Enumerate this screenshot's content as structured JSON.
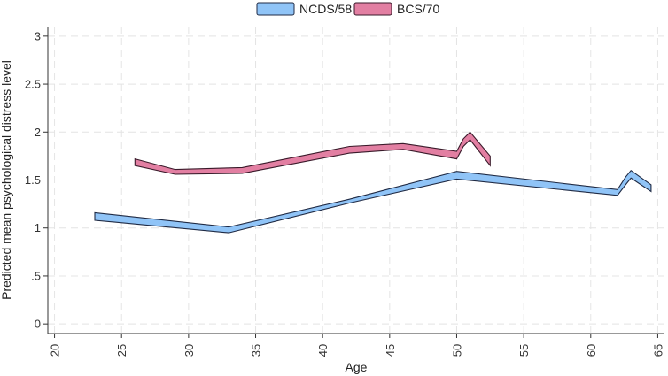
{
  "chart_data": {
    "type": "area",
    "xlabel": "Age",
    "ylabel": "Predicted mean psychological distress level",
    "xlim": [
      19.5,
      65.5
    ],
    "ylim": [
      -0.1,
      3.1
    ],
    "xticks": [
      20,
      25,
      30,
      35,
      40,
      45,
      50,
      55,
      60,
      65
    ],
    "xtick_labels": [
      "20",
      "25",
      "30",
      "35",
      "40",
      "45",
      "50",
      "55",
      "60",
      "65"
    ],
    "yticks": [
      0,
      0.5,
      1,
      1.5,
      2,
      2.5,
      3
    ],
    "ytick_labels": [
      "0",
      ".5",
      "1",
      "1.5",
      "2",
      "2.5",
      "3"
    ],
    "grid": true,
    "legend_position": "top",
    "series": [
      {
        "name": "NCDS/58",
        "color": "#90C4F7",
        "edge_color": "#1F2A44",
        "points": [
          {
            "x": 23,
            "upper": 1.16,
            "lower": 1.08
          },
          {
            "x": 33,
            "upper": 1.01,
            "lower": 0.95
          },
          {
            "x": 42,
            "upper": 1.3,
            "lower": 1.26
          },
          {
            "x": 50,
            "upper": 1.59,
            "lower": 1.51
          },
          {
            "x": 62,
            "upper": 1.4,
            "lower": 1.34
          },
          {
            "x": 62.6,
            "upper": 1.53,
            "lower": 1.45
          },
          {
            "x": 63,
            "upper": 1.6,
            "lower": 1.52
          },
          {
            "x": 64.5,
            "upper": 1.45,
            "lower": 1.38
          }
        ]
      },
      {
        "name": "BCS/70",
        "color": "#E27FA2",
        "edge_color": "#3A1A2A",
        "points": [
          {
            "x": 26,
            "upper": 1.72,
            "lower": 1.65
          },
          {
            "x": 29,
            "upper": 1.61,
            "lower": 1.56
          },
          {
            "x": 34,
            "upper": 1.63,
            "lower": 1.57
          },
          {
            "x": 42,
            "upper": 1.85,
            "lower": 1.78
          },
          {
            "x": 46,
            "upper": 1.88,
            "lower": 1.82
          },
          {
            "x": 50,
            "upper": 1.8,
            "lower": 1.72
          },
          {
            "x": 50.5,
            "upper": 1.93,
            "lower": 1.85
          },
          {
            "x": 51,
            "upper": 2.0,
            "lower": 1.92
          },
          {
            "x": 52.5,
            "upper": 1.75,
            "lower": 1.65
          }
        ]
      }
    ]
  }
}
